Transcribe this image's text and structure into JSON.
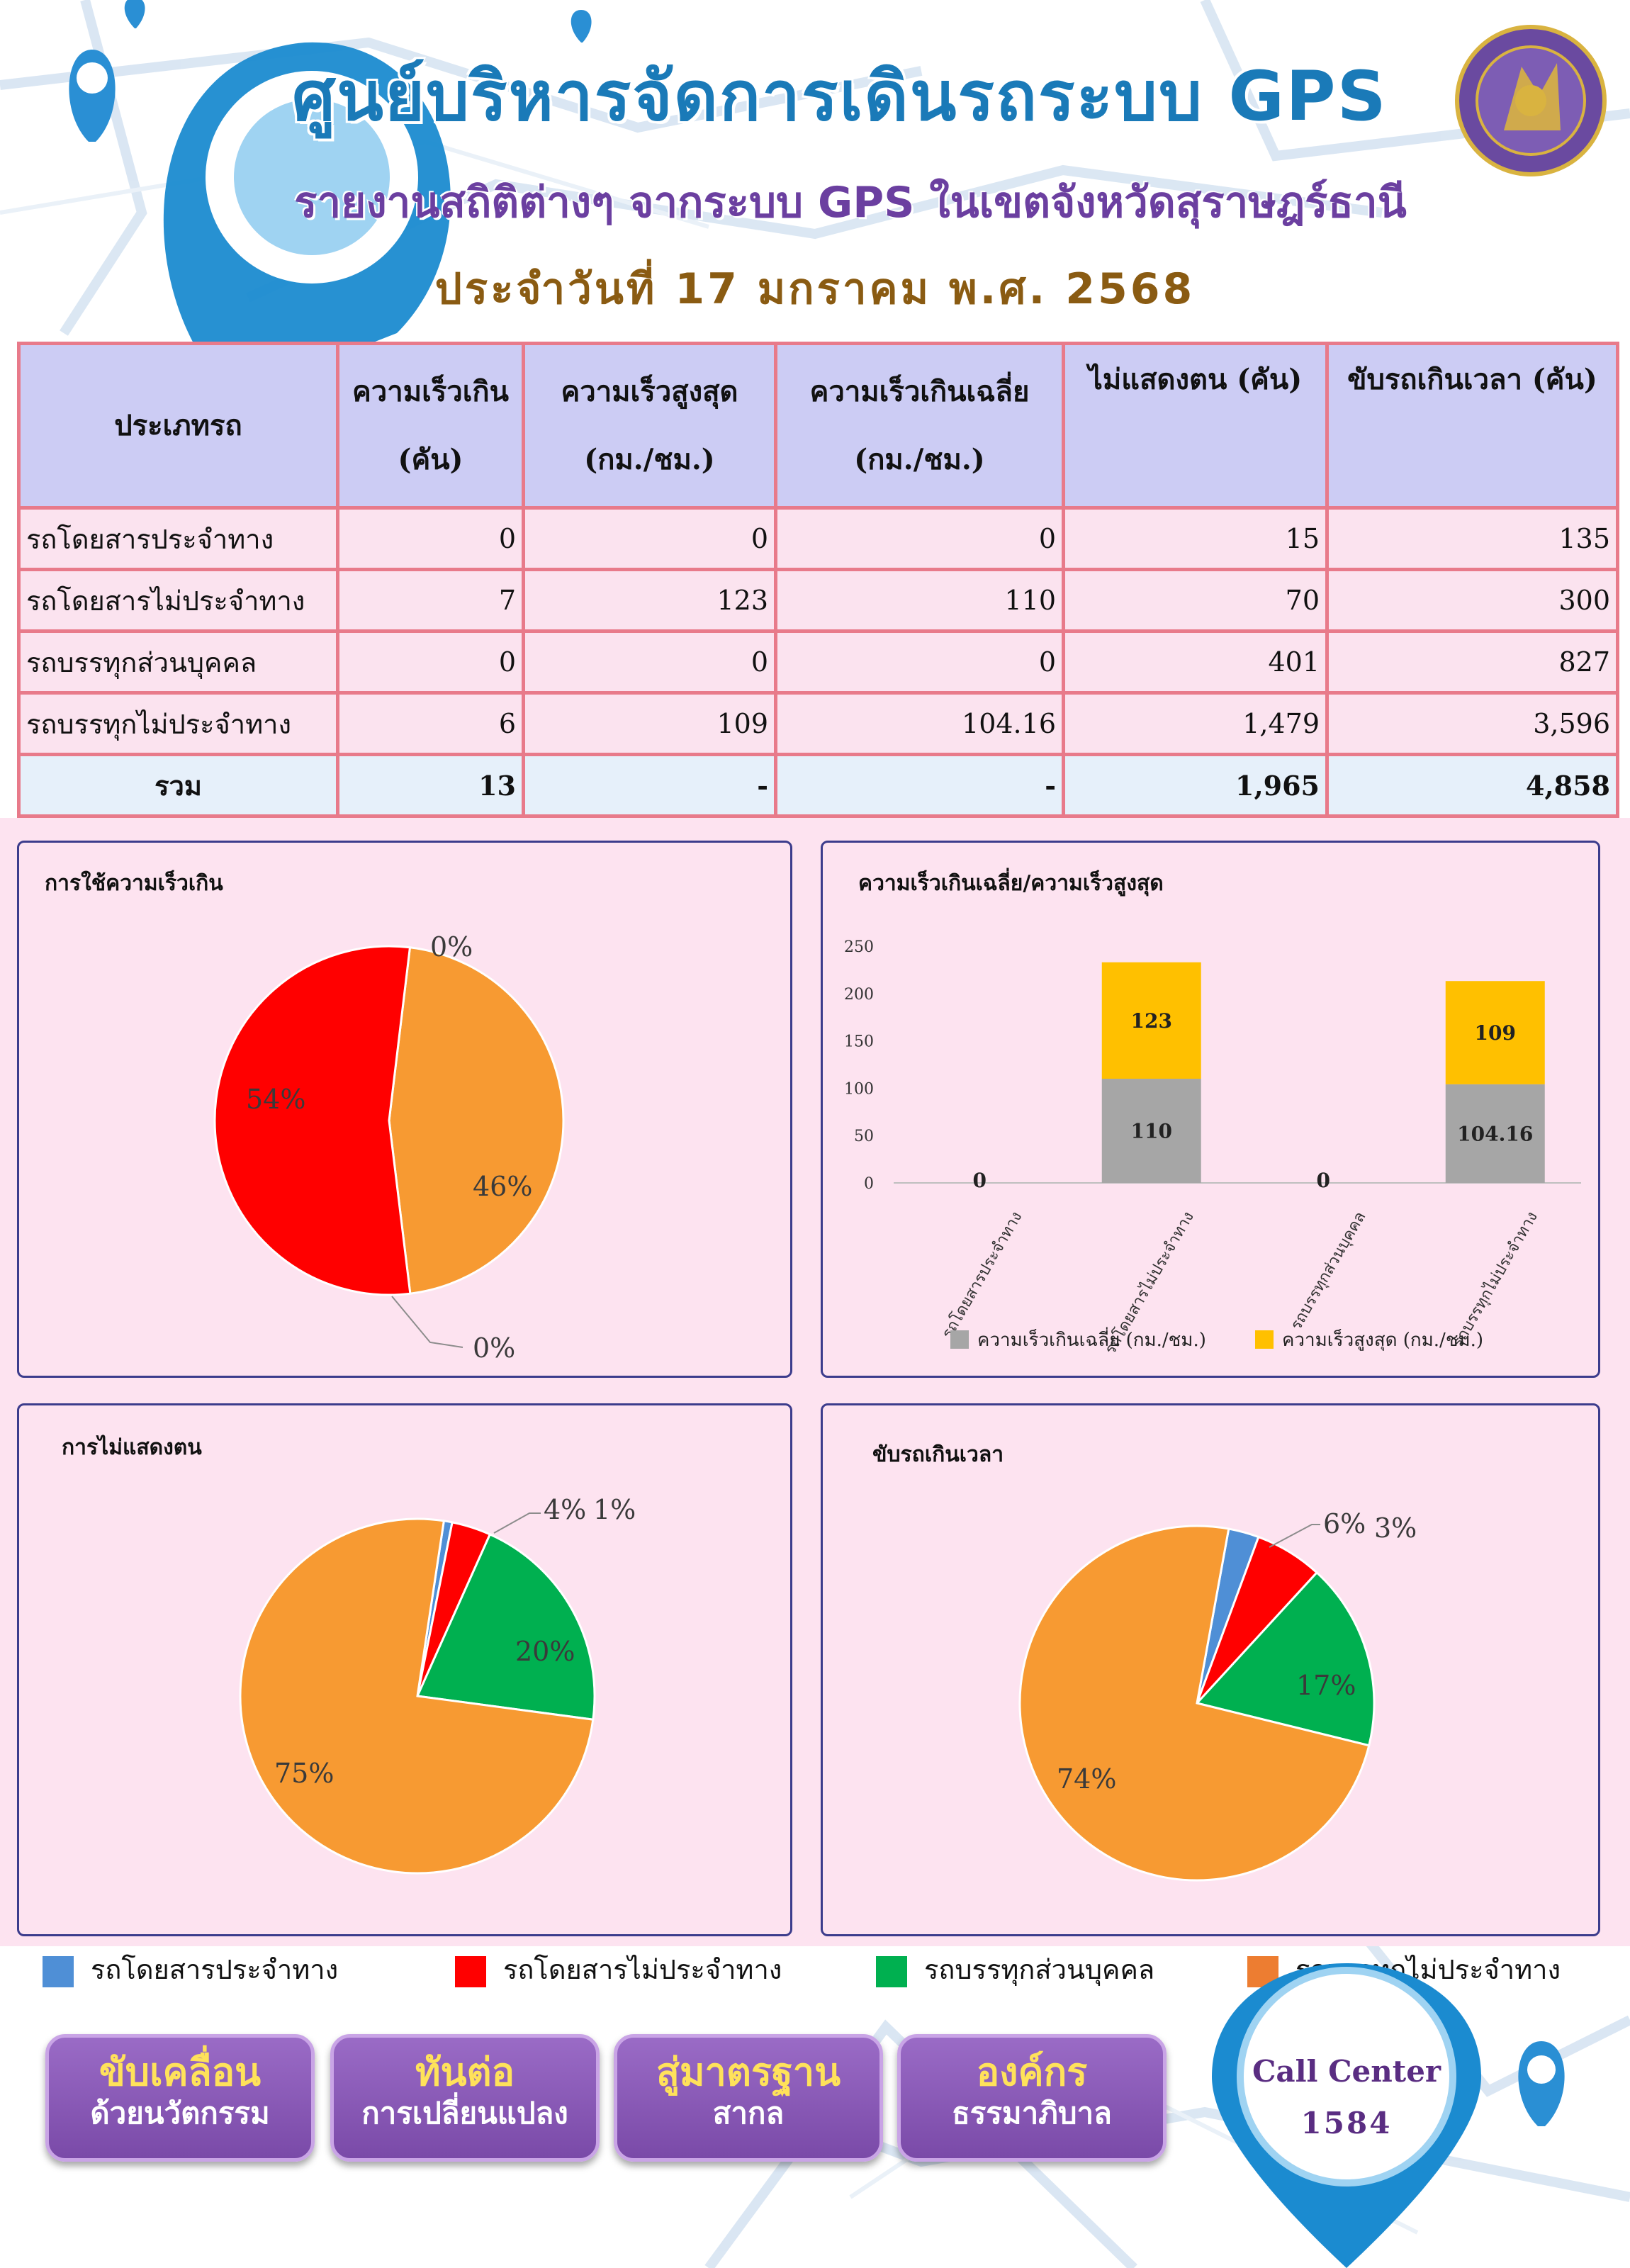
{
  "header": {
    "title": "ศูนย์บริหารจัดการเดินรถระบบ GPS",
    "subtitle": "รายงานสถิติต่างๆ จากระบบ GPS ในเขตจังหวัดสุราษฎร์ธานี",
    "date": "ประจำวันที่   17   มกราคม   พ.ศ. 2568"
  },
  "colors": {
    "route_bus": "#4f8fd6",
    "non_route_bus": "#ff0000",
    "private_truck": "#00b050",
    "non_route_truck": "#f79a32",
    "avg_speed": "#a6a6a6",
    "max_speed": "#ffc000"
  },
  "table": {
    "headers": {
      "type": "ประเภทรถ",
      "speeding_1": "ความเร็วเกิน",
      "speeding_2": "(คัน)",
      "max_1": "ความเร็วสูงสุด",
      "max_2": "(กม./ชม.)",
      "avg_1": "ความเร็วเกินเฉลี่ย",
      "avg_2": "(กม./ชม.)",
      "noid": "ไม่แสดงตน (คัน)",
      "overtime": "ขับรถเกินเวลา (คัน)"
    },
    "rows": [
      {
        "type": "รถโดยสารประจำทาง",
        "speeding": "0",
        "max": "0",
        "avg": "0",
        "noid": "15",
        "overtime": "135"
      },
      {
        "type": "รถโดยสารไม่ประจำทาง",
        "speeding": "7",
        "max": "123",
        "avg": "110",
        "noid": "70",
        "overtime": "300"
      },
      {
        "type": "รถบรรทุกส่วนบุคคล",
        "speeding": "0",
        "max": "0",
        "avg": "0",
        "noid": "401",
        "overtime": "827"
      },
      {
        "type": "รถบรรทุกไม่ประจำทาง",
        "speeding": "6",
        "max": "109",
        "avg": "104.16",
        "noid": "1,479",
        "overtime": "3,596"
      }
    ],
    "total": {
      "type": "รวม",
      "speeding": "13",
      "max": "-",
      "avg": "-",
      "noid": "1,965",
      "overtime": "4,858"
    }
  },
  "chart_data": [
    {
      "type": "pie",
      "title": "การใช้ความเร็วเกิน",
      "categories": [
        "รถโดยสารประจำทาง",
        "รถโดยสารไม่ประจำทาง",
        "รถบรรทุกส่วนบุคคล",
        "รถบรรทุกไม่ประจำทาง"
      ],
      "values": [
        0,
        7,
        0,
        6
      ],
      "labels": [
        "0%",
        "54%",
        "0%",
        "46%"
      ]
    },
    {
      "type": "bar",
      "stacked": true,
      "title": "ความเร็วเกินเฉลี่ย/ความเร็วสูงสุด",
      "categories": [
        "รถโดยสารประจำทาง",
        "รถโดยสารไม่ประจำทาง",
        "รถบรรทุกส่วนบุคคล",
        "รถบรรทุกไม่ประจำทาง"
      ],
      "series": [
        {
          "name": "ความเร็วเกินเฉลี่ย (กม./ชม.)",
          "values": [
            0,
            110,
            0,
            104.16
          ],
          "labels": [
            "0",
            "110",
            "0",
            "104.16"
          ]
        },
        {
          "name": "ความเร็วสูงสุด (กม./ชม.)",
          "values": [
            0,
            123,
            0,
            109
          ],
          "labels": [
            "0",
            "123",
            "0",
            "109"
          ]
        }
      ],
      "yticks": [
        "0",
        "50",
        "100",
        "150",
        "200",
        "250"
      ],
      "ylim": [
        0,
        250
      ],
      "legend": "bottom"
    },
    {
      "type": "pie",
      "title": "การไม่แสดงตน",
      "categories": [
        "รถโดยสารประจำทาง",
        "รถโดยสารไม่ประจำทาง",
        "รถบรรทุกส่วนบุคคล",
        "รถบรรทุกไม่ประจำทาง"
      ],
      "values": [
        15,
        70,
        401,
        1479
      ],
      "labels": [
        "1%",
        "4%",
        "20%",
        "75%"
      ]
    },
    {
      "type": "pie",
      "title": "ขับรถเกินเวลา",
      "categories": [
        "รถโดยสารประจำทาง",
        "รถโดยสารไม่ประจำทาง",
        "รถบรรทุกส่วนบุคคล",
        "รถบรรทุกไม่ประจำทาง"
      ],
      "values": [
        135,
        300,
        827,
        3596
      ],
      "labels": [
        "3%",
        "6%",
        "17%",
        "74%"
      ]
    }
  ],
  "legend": [
    "รถโดยสารประจำทาง",
    "รถโดยสารไม่ประจำทาง",
    "รถบรรทุกส่วนบุคคล",
    "รถบรรทุกไม่ประจำทาง"
  ],
  "buttons": [
    {
      "line1": "ขับเคลื่อน",
      "line2": "ด้วยนวัตกรรม"
    },
    {
      "line1": "ทันต่อ",
      "line2": "การเปลี่ยนแปลง"
    },
    {
      "line1": "สู่มาตรฐาน",
      "line2": "สากล"
    },
    {
      "line1": "องค์กร",
      "line2": "ธรรมาภิบาล"
    }
  ],
  "call_center": {
    "label": "Call Center",
    "number": "1584"
  }
}
